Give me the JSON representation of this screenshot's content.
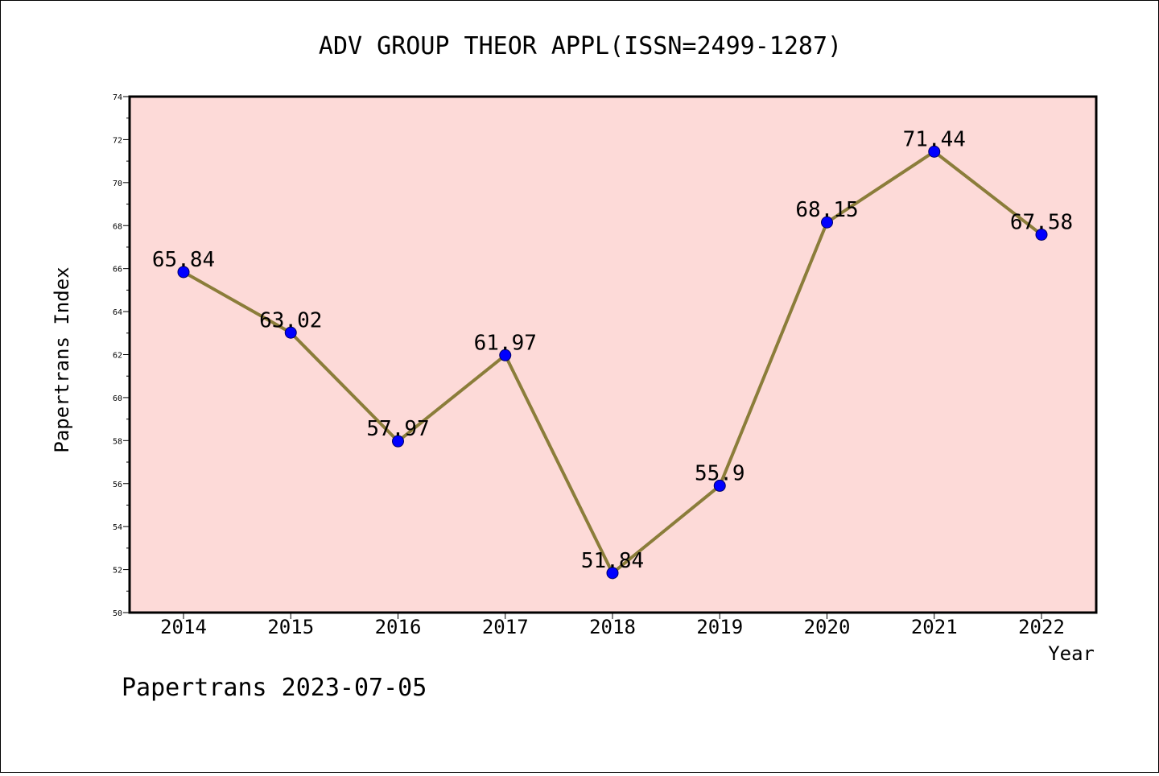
{
  "chart_data": {
    "type": "line",
    "title": "ADV GROUP THEOR APPL(ISSN=2499-1287)",
    "xlabel": "Year",
    "ylabel": "Papertrans Index",
    "categories": [
      "2014",
      "2015",
      "2016",
      "2017",
      "2018",
      "2019",
      "2020",
      "2021",
      "2022"
    ],
    "values": [
      65.84,
      63.02,
      57.97,
      61.97,
      51.84,
      55.9,
      68.15,
      71.44,
      67.58
    ],
    "data_labels": [
      "65.84",
      "63.02",
      "57.97",
      "61.97",
      "51.84",
      "55.9",
      "68.15",
      "71.44",
      "67.58"
    ],
    "ylim": [
      50,
      74
    ],
    "yticks": [
      "50",
      "52",
      "54",
      "56",
      "58",
      "60",
      "62",
      "64",
      "66",
      "68",
      "70",
      "72",
      "74"
    ],
    "grid": false,
    "colors": {
      "plot_background": "#fddad8",
      "line": "#8b7d3a",
      "marker": "#0000ff"
    }
  },
  "footer": "Papertrans 2023-07-05"
}
